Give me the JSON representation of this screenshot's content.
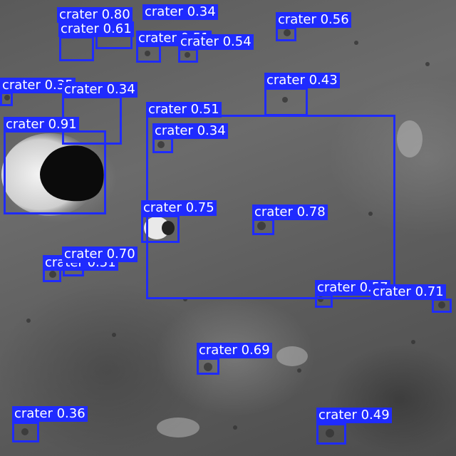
{
  "image": {
    "subject": "lunar surface",
    "box_color": "#1f2bff",
    "label_text_color": "#ffffff"
  },
  "detections": [
    {
      "label": "crater 0.80"
    },
    {
      "label": "crater 0.34"
    },
    {
      "label": "crater 0.61"
    },
    {
      "label": "crater 0.51"
    },
    {
      "label": "crater 0.54"
    },
    {
      "label": "crater 0.56"
    },
    {
      "label": "crater 0.35"
    },
    {
      "label": "crater 0.34"
    },
    {
      "label": "crater 0.43"
    },
    {
      "label": "crater 0.51"
    },
    {
      "label": "crater 0.91"
    },
    {
      "label": "crater 0.34"
    },
    {
      "label": "crater 0.75"
    },
    {
      "label": "crater 0.78"
    },
    {
      "label": "crater 0.51"
    },
    {
      "label": "crater 0.70"
    },
    {
      "label": "crater 0.57"
    },
    {
      "label": "crater 0.71"
    },
    {
      "label": "crater 0.69"
    },
    {
      "label": "crater 0.36"
    },
    {
      "label": "crater 0.49"
    }
  ]
}
